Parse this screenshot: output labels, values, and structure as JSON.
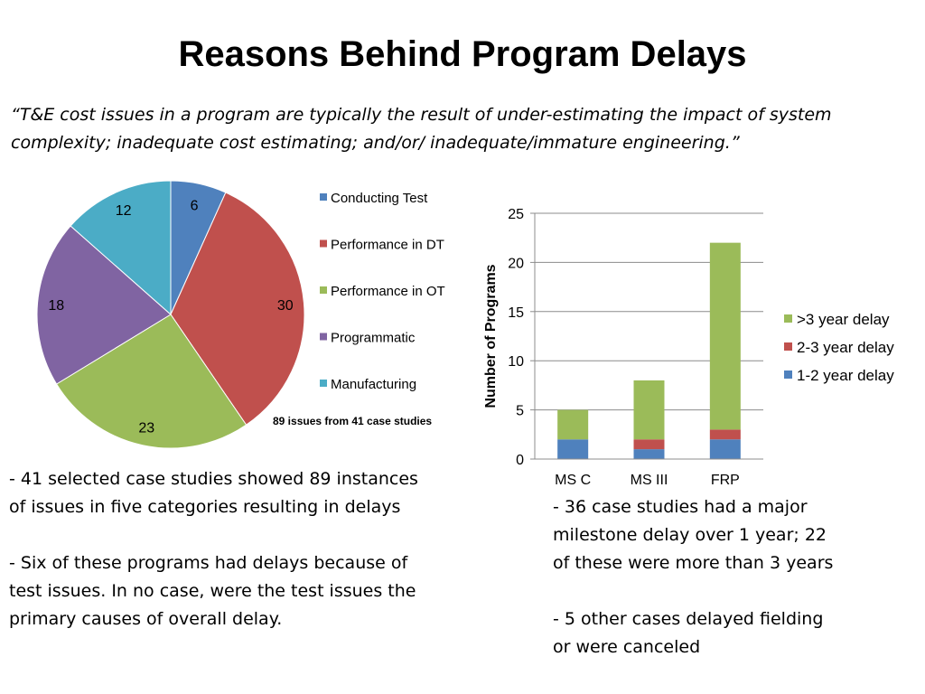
{
  "slide": {
    "title": "Reasons Behind Program Delays",
    "quote_lines": [
      "“T&E cost issues in a program are typically the result of under-estimating the impact of system",
      "complexity; inadequate cost estimating; and/or/ inadequate/immature engineering.”"
    ],
    "left_text_lines": [
      " - 41 selected case studies showed 89 instances",
      "of issues in five categories resulting in delays",
      "",
      " - Six of these programs had delays because of",
      "test issues.  In no case, were the test issues the",
      "primary causes of overall delay."
    ],
    "right_text_lines": [
      " - 36 case studies had a major",
      "milestone delay over 1 year; 22",
      "of these were more than 3 years",
      "",
      " - 5 other cases delayed fielding",
      "or were canceled"
    ]
  },
  "chart_data": [
    {
      "type": "pie",
      "categories": [
        "Conducting Test",
        "Performance in DT",
        "Performance in OT",
        "Programmatic",
        "Manufacturing"
      ],
      "values": [
        6,
        30,
        23,
        18,
        12
      ],
      "colors": [
        "#4f81bd",
        "#c0504d",
        "#9bbb59",
        "#8064a2",
        "#4bacc6"
      ],
      "annotation": "89 issues from 41 case studies",
      "legend": "right"
    },
    {
      "type": "bar",
      "stacked": true,
      "categories": [
        "MS C",
        "MS III",
        "FRP"
      ],
      "series": [
        {
          "name": "1-2 year delay",
          "values": [
            2,
            1,
            2
          ],
          "color": "#4f81bd"
        },
        {
          "name": "2-3 year delay",
          "values": [
            0,
            1,
            1
          ],
          "color": "#c0504d"
        },
        {
          "name": ">3 year delay",
          "values": [
            3,
            6,
            19
          ],
          "color": "#9bbb59"
        }
      ],
      "ylabel": "Number of Programs",
      "ylim": [
        0,
        25
      ],
      "yticks": [
        0,
        5,
        10,
        15,
        20,
        25
      ],
      "grid": true,
      "legend": "right"
    }
  ]
}
